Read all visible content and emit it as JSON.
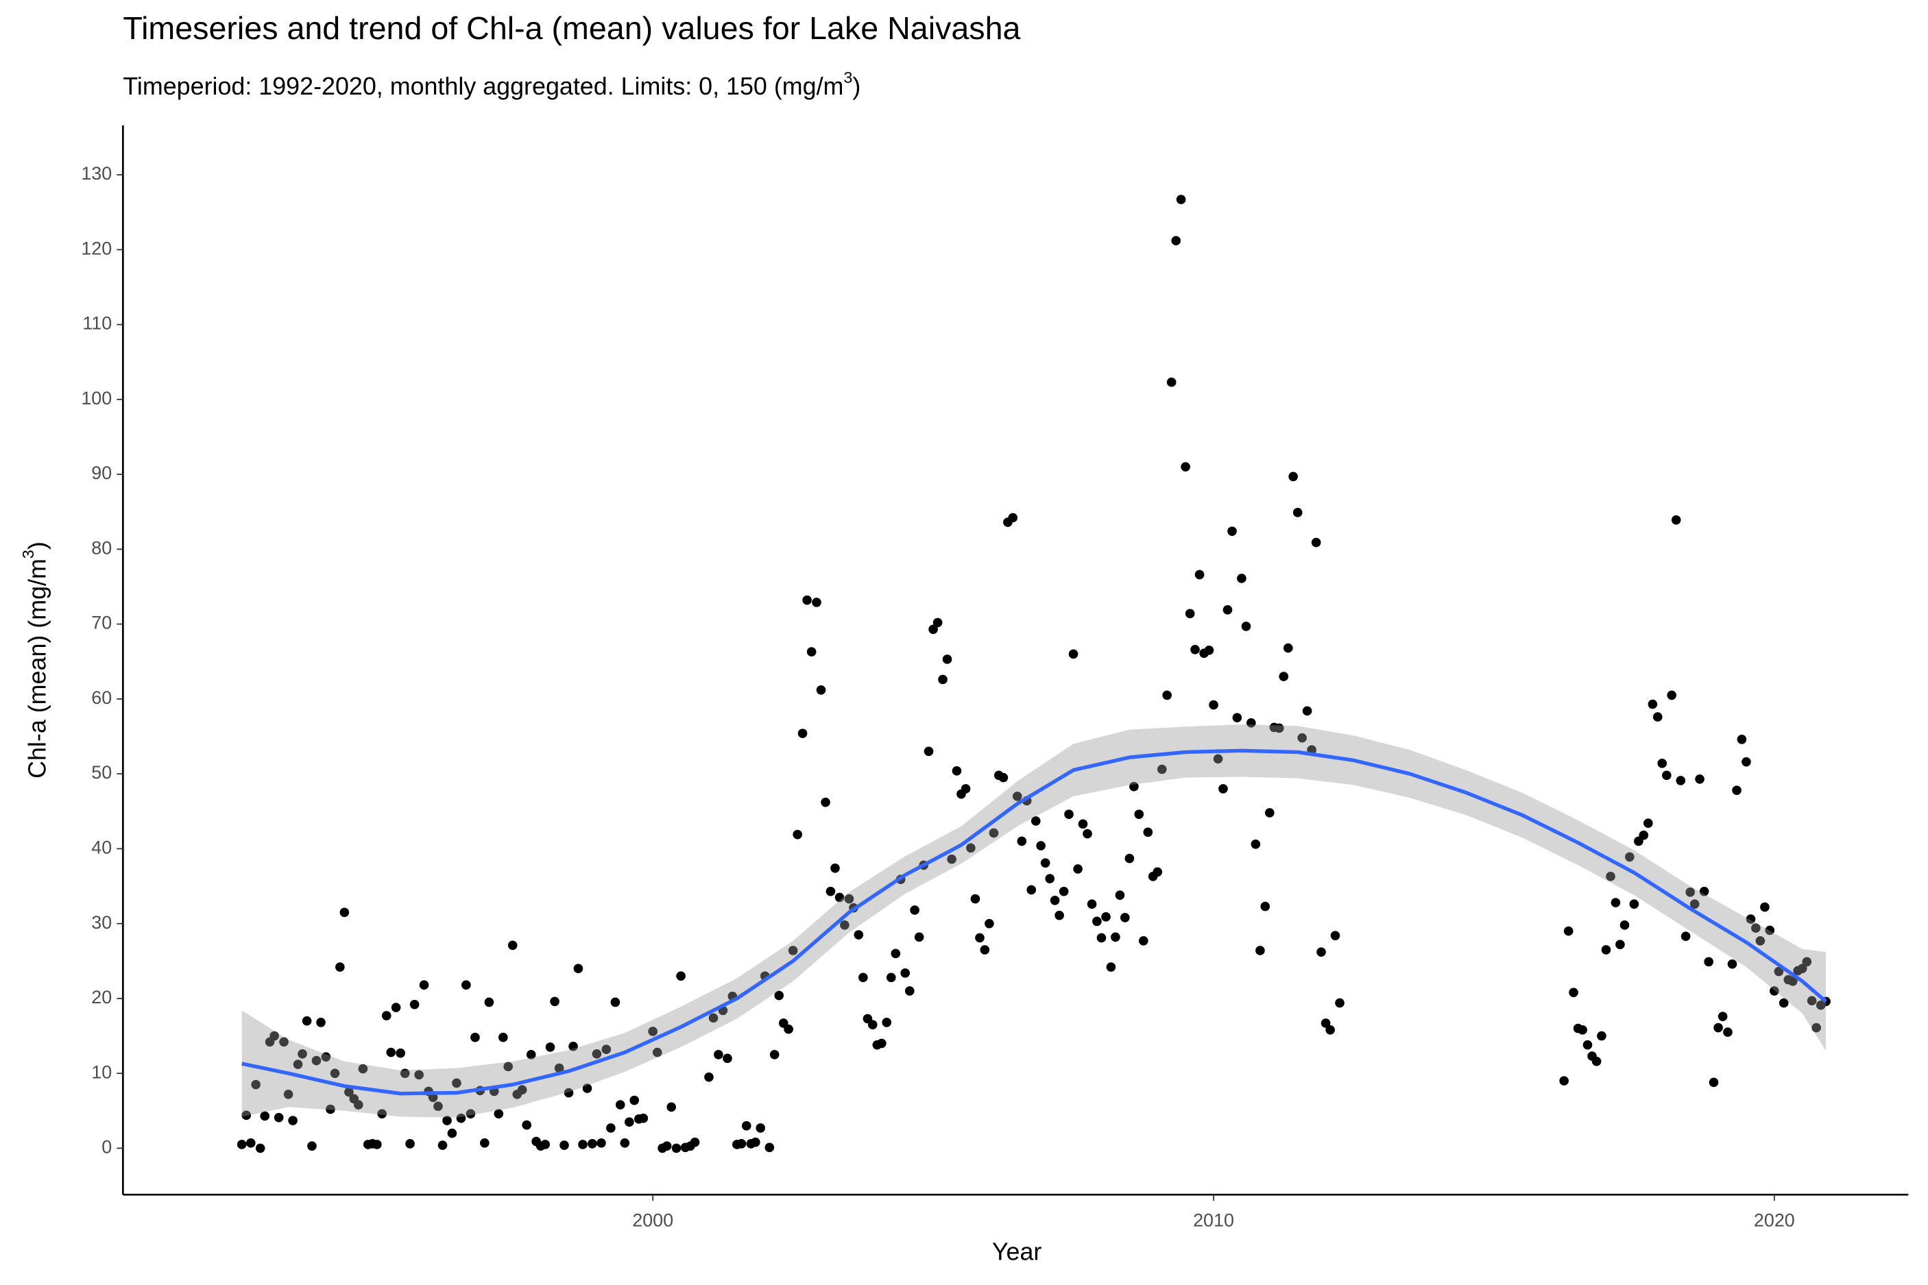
{
  "chart_data": {
    "type": "scatter",
    "title": "Timeseries and trend of Chl-a (mean) values for Lake Naivasha",
    "subtitle_parts": [
      "Timeperiod: 1992-2020, monthly aggregated. Limits: 0, 150 (mg/m",
      "3",
      ")"
    ],
    "x_label": "Year",
    "y_label_parts": [
      "Chl-a (mean) (mg/m",
      "3",
      ")"
    ],
    "xlim": [
      1990.55,
      2022.39
    ],
    "ylim": [
      -6.2,
      136.6
    ],
    "xticks": [
      2000,
      2010,
      2020
    ],
    "yticks": [
      0,
      10,
      20,
      30,
      40,
      50,
      60,
      70,
      80,
      90,
      100,
      110,
      120,
      130
    ],
    "grid": false,
    "series": [
      {
        "type": "scatter",
        "color": "#000000",
        "x": [
          1992.67,
          1992.75,
          1992.83,
          1992.92,
          1993.0,
          1993.08,
          1993.17,
          1993.25,
          1993.33,
          1993.42,
          1993.5,
          1993.58,
          1993.67,
          1993.75,
          1993.83,
          1993.92,
          1994.0,
          1994.08,
          1994.17,
          1994.25,
          1994.33,
          1994.42,
          1994.5,
          1994.58,
          1994.67,
          1994.75,
          1994.83,
          1994.92,
          1995.0,
          1995.08,
          1995.17,
          1995.25,
          1995.33,
          1995.42,
          1995.5,
          1995.58,
          1995.67,
          1995.75,
          1995.83,
          1995.92,
          1996.0,
          1996.08,
          1996.17,
          1996.25,
          1996.33,
          1996.42,
          1996.5,
          1996.58,
          1996.67,
          1996.75,
          1996.83,
          1996.92,
          1997.0,
          1997.08,
          1997.17,
          1997.25,
          1997.33,
          1997.42,
          1997.5,
          1997.58,
          1997.67,
          1997.75,
          1997.83,
          1997.92,
          1998.0,
          1998.08,
          1998.17,
          1998.25,
          1998.33,
          1998.42,
          1998.5,
          1998.58,
          1998.67,
          1998.75,
          1998.83,
          1998.92,
          1999.0,
          1999.08,
          1999.17,
          1999.25,
          1999.33,
          1999.42,
          1999.5,
          1999.58,
          1999.67,
          1999.75,
          1999.83,
          2000.0,
          2000.08,
          2000.17,
          2000.25,
          2000.33,
          2000.42,
          2000.5,
          2000.58,
          2000.67,
          2000.75,
          2001.0,
          2001.08,
          2001.17,
          2001.25,
          2001.33,
          2001.42,
          2001.5,
          2001.58,
          2001.67,
          2001.75,
          2001.83,
          2001.92,
          2002.0,
          2002.08,
          2002.17,
          2002.25,
          2002.33,
          2002.42,
          2002.5,
          2002.58,
          2002.67,
          2002.75,
          2002.83,
          2002.92,
          2003.0,
          2003.08,
          2003.17,
          2003.25,
          2003.33,
          2003.42,
          2003.5,
          2003.58,
          2003.67,
          2003.75,
          2003.83,
          2003.92,
          2004.0,
          2004.08,
          2004.17,
          2004.25,
          2004.33,
          2004.42,
          2004.5,
          2004.58,
          2004.67,
          2004.75,
          2004.83,
          2004.92,
          2005.0,
          2005.08,
          2005.17,
          2005.25,
          2005.33,
          2005.42,
          2005.5,
          2005.58,
          2005.67,
          2005.75,
          2005.83,
          2005.92,
          2006.0,
          2006.08,
          2006.17,
          2006.25,
          2006.33,
          2006.42,
          2006.5,
          2006.58,
          2006.67,
          2006.75,
          2006.83,
          2006.92,
          2007.0,
          2007.08,
          2007.17,
          2007.25,
          2007.33,
          2007.42,
          2007.5,
          2007.58,
          2007.67,
          2007.75,
          2007.83,
          2007.92,
          2008.0,
          2008.08,
          2008.17,
          2008.25,
          2008.33,
          2008.42,
          2008.5,
          2008.58,
          2008.67,
          2008.75,
          2008.83,
          2008.92,
          2009.0,
          2009.08,
          2009.17,
          2009.25,
          2009.33,
          2009.42,
          2009.5,
          2009.58,
          2009.67,
          2009.75,
          2009.83,
          2009.92,
          2010.0,
          2010.08,
          2010.17,
          2010.25,
          2010.33,
          2010.42,
          2010.5,
          2010.58,
          2010.67,
          2010.75,
          2010.83,
          2010.92,
          2011.0,
          2011.08,
          2011.17,
          2011.25,
          2011.33,
          2011.42,
          2011.5,
          2011.58,
          2011.67,
          2011.75,
          2011.83,
          2011.92,
          2012.0,
          2012.08,
          2012.17,
          2012.25,
          2016.25,
          2016.33,
          2016.42,
          2016.5,
          2016.58,
          2016.67,
          2016.75,
          2016.83,
          2016.92,
          2017.0,
          2017.08,
          2017.17,
          2017.25,
          2017.33,
          2017.42,
          2017.5,
          2017.58,
          2017.67,
          2017.75,
          2017.83,
          2017.92,
          2018.0,
          2018.08,
          2018.17,
          2018.25,
          2018.33,
          2018.42,
          2018.5,
          2018.58,
          2018.67,
          2018.75,
          2018.83,
          2018.92,
          2019.0,
          2019.08,
          2019.17,
          2019.25,
          2019.33,
          2019.42,
          2019.5,
          2019.58,
          2019.67,
          2019.75,
          2019.83,
          2019.92,
          2020.0,
          2020.08,
          2020.17,
          2020.25,
          2020.33,
          2020.42,
          2020.5,
          2020.58,
          2020.67,
          2020.75,
          2020.83,
          2020.92
        ],
        "values": [
          0.5,
          4.4,
          0.7,
          8.5,
          0,
          4.3,
          14.2,
          15,
          4.1,
          14.2,
          7.2,
          3.7,
          11.2,
          12.6,
          17,
          0.3,
          11.7,
          16.8,
          12.2,
          5.2,
          10,
          24.2,
          31.5,
          7.5,
          6.6,
          5.8,
          10.6,
          0.5,
          0.6,
          0.5,
          4.6,
          17.7,
          12.8,
          18.8,
          12.7,
          10,
          0.6,
          19.2,
          9.8,
          21.8,
          7.6,
          6.8,
          5.6,
          0.4,
          3.7,
          2,
          8.7,
          4,
          21.8,
          4.6,
          14.8,
          7.7,
          0.7,
          19.5,
          7.6,
          4.6,
          14.8,
          10.9,
          27.1,
          7.2,
          7.8,
          3.1,
          12.5,
          0.9,
          0.3,
          0.5,
          13.5,
          19.6,
          10.7,
          0.4,
          7.4,
          13.6,
          24,
          0.5,
          8,
          0.6,
          12.6,
          0.7,
          13.2,
          2.7,
          19.5,
          5.8,
          0.7,
          3.5,
          6.4,
          3.9,
          4,
          15.6,
          12.8,
          0,
          0.3,
          5.5,
          0,
          23,
          0.1,
          0.3,
          0.8,
          9.5,
          17.4,
          12.5,
          18.4,
          12,
          20.3,
          0.5,
          0.6,
          3,
          0.6,
          0.8,
          2.7,
          23,
          0.1,
          12.5,
          20.4,
          16.7,
          15.9,
          26.4,
          41.9,
          55.4,
          73.2,
          66.3,
          72.9,
          61.2,
          46.2,
          34.3,
          37.4,
          33.5,
          29.8,
          33.3,
          32.1,
          28.5,
          22.8,
          17.3,
          16.5,
          13.8,
          14,
          16.8,
          22.8,
          26,
          35.9,
          23.4,
          21,
          31.8,
          28.2,
          37.8,
          53,
          69.3,
          70.2,
          62.6,
          65.3,
          38.6,
          50.4,
          47.3,
          48,
          40.1,
          33.3,
          28.1,
          26.5,
          30,
          42.1,
          49.8,
          49.5,
          83.6,
          84.2,
          47,
          41,
          46.4,
          34.5,
          43.7,
          40.4,
          38.1,
          36,
          33.1,
          31.1,
          34.3,
          44.6,
          66,
          37.3,
          43.3,
          42,
          32.6,
          30.3,
          28.1,
          30.9,
          24.2,
          28.2,
          33.8,
          30.8,
          38.7,
          48.3,
          44.6,
          27.7,
          42.2,
          36.3,
          36.9,
          50.6,
          60.5,
          102.3,
          121.2,
          126.7,
          91,
          71.4,
          66.6,
          76.6,
          66.1,
          66.5,
          59.2,
          52,
          48,
          71.9,
          82.4,
          57.5,
          76.1,
          69.7,
          56.8,
          40.6,
          26.4,
          32.3,
          44.8,
          56.2,
          56.1,
          63,
          66.8,
          89.7,
          84.9,
          54.8,
          58.4,
          53.2,
          80.9,
          26.2,
          16.7,
          15.8,
          28.4,
          19.4,
          9,
          29,
          20.8,
          16,
          15.8,
          13.8,
          12.3,
          11.6,
          15,
          26.5,
          36.3,
          32.8,
          27.2,
          29.8,
          38.9,
          32.6,
          41,
          41.8,
          43.4,
          59.3,
          57.6,
          51.4,
          49.8,
          60.5,
          83.9,
          49.1,
          28.3,
          34.2,
          32.6,
          49.3,
          34.3,
          24.9,
          8.8,
          16.1,
          17.6,
          15.5,
          24.6,
          47.8,
          54.6,
          51.6,
          30.6,
          29.4,
          27.7,
          32.2,
          29.1,
          21,
          23.6,
          19.4,
          22.5,
          22.3,
          23.7,
          24,
          24.9,
          19.7,
          16.1,
          19.1,
          19.6
        ]
      },
      {
        "type": "line",
        "color": "#3366FF",
        "band_color": "#999999",
        "x": [
          1992.67,
          1993.5,
          1994.5,
          1995.5,
          1996.5,
          1997.5,
          1998.5,
          1999.5,
          2000.5,
          2001.5,
          2002.5,
          2003.5,
          2004.5,
          2005.5,
          2006.5,
          2007.5,
          2008.5,
          2009.5,
          2010.5,
          2011.5,
          2012.5,
          2013.5,
          2014.5,
          2015.5,
          2016.5,
          2017.5,
          2018.5,
          2019.5,
          2020.5,
          2020.92
        ],
        "values": [
          11.3,
          10,
          8.3,
          7.3,
          7.4,
          8.5,
          10.3,
          12.8,
          16.2,
          20,
          25,
          31.5,
          36.5,
          40.5,
          46,
          50.5,
          52.2,
          52.9,
          53.1,
          52.9,
          51.8,
          50,
          47.5,
          44.5,
          40.8,
          36.8,
          32,
          27.5,
          22.3,
          19.6
        ],
        "lower": [
          4.2,
          5.5,
          5,
          4.2,
          4.1,
          5.4,
          7.5,
          10.2,
          13.5,
          17.3,
          22.3,
          28.8,
          34,
          38,
          43,
          47,
          48.5,
          49.5,
          49.6,
          49.4,
          48.5,
          46.8,
          44.5,
          41.5,
          37.8,
          33.8,
          29,
          24.2,
          18,
          13
        ],
        "upper": [
          18.4,
          14.5,
          11.6,
          10.4,
          10.7,
          11.6,
          13.1,
          15.4,
          18.9,
          22.7,
          27.7,
          34.2,
          39,
          43,
          49,
          54,
          55.9,
          56.3,
          56.6,
          56.4,
          55.1,
          53.2,
          50.5,
          47.5,
          43.8,
          39.8,
          35,
          30.8,
          26.6,
          26.2
        ]
      }
    ]
  }
}
